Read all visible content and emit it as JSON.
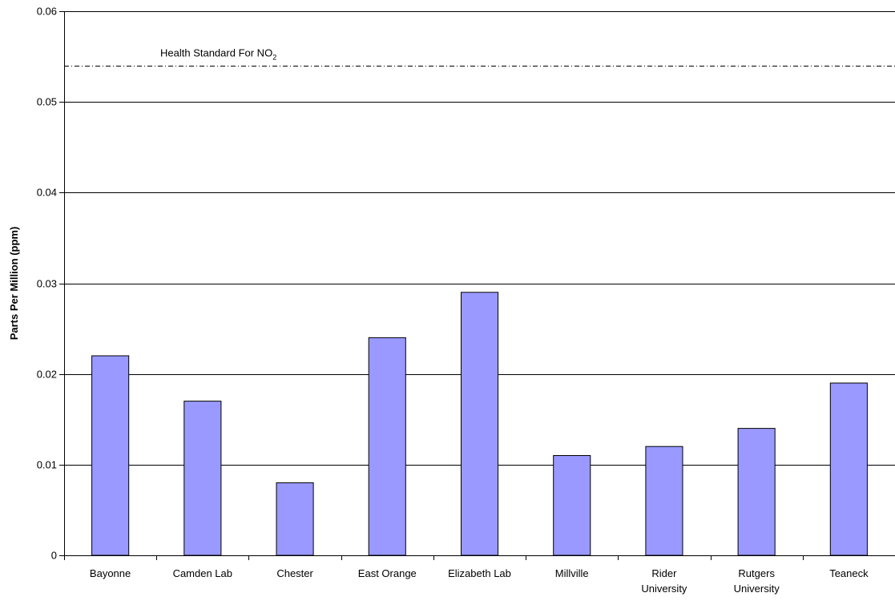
{
  "chart_data": {
    "type": "bar",
    "title": "",
    "xlabel": "",
    "ylabel": "Parts Per Million (ppm)",
    "ylim": [
      0,
      0.06
    ],
    "yticks": [
      "0",
      "0.01",
      "0.02",
      "0.03",
      "0.04",
      "0.05",
      "0.06"
    ],
    "grid": true,
    "legend": "none",
    "categories": [
      [
        "Bayonne"
      ],
      [
        "Camden Lab"
      ],
      [
        "Chester"
      ],
      [
        "East Orange"
      ],
      [
        "Elizabeth Lab"
      ],
      [
        "Millville"
      ],
      [
        "Rider",
        "University"
      ],
      [
        "Rutgers",
        "University"
      ],
      [
        "Teaneck"
      ]
    ],
    "values": [
      0.022,
      0.017,
      0.008,
      0.024,
      0.029,
      0.011,
      0.012,
      0.014,
      0.019
    ],
    "reference_line": {
      "value": 0.054,
      "label": "Health Standard For NO",
      "label_subscript": "2",
      "style": "dash-dot"
    },
    "colors": {
      "bar_fill": "#9999ff",
      "bar_stroke": "#000000",
      "grid": "#000000",
      "axis": "#000000"
    }
  }
}
